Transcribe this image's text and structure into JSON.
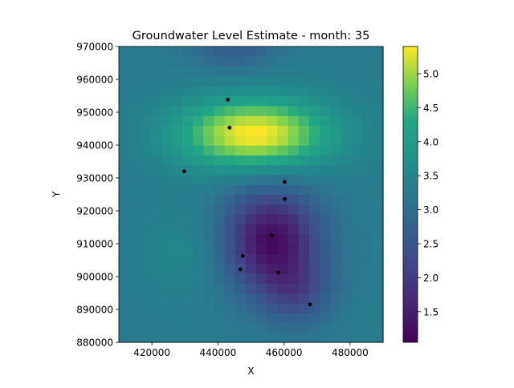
{
  "chart_data": {
    "type": "heatmap",
    "title": "Groundwater Level Estimate - month: 35",
    "xlabel": "X",
    "ylabel": "Y",
    "xlim": [
      410000,
      490000
    ],
    "ylim": [
      880000,
      970000
    ],
    "xticks": [
      420000,
      440000,
      460000,
      480000
    ],
    "yticks": [
      880000,
      890000,
      900000,
      910000,
      920000,
      930000,
      940000,
      950000,
      960000,
      970000
    ],
    "xtick_labels": [
      "420000",
      "440000",
      "460000",
      "480000"
    ],
    "ytick_labels": [
      "880000",
      "890000",
      "900000",
      "910000",
      "920000",
      "930000",
      "940000",
      "950000",
      "960000",
      "970000"
    ],
    "grid": false,
    "colormap": "viridis",
    "colorbar": {
      "range": [
        1.05,
        5.4
      ],
      "ticks": [
        1.5,
        2.0,
        2.5,
        3.0,
        3.5,
        4.0,
        4.5,
        5.0
      ],
      "tick_labels": [
        "1.5",
        "2.0",
        "2.5",
        "3.0",
        "3.5",
        "4.0",
        "4.5",
        "5.0"
      ]
    },
    "grid_cells": [
      25,
      30
    ],
    "field": {
      "base": 3.3,
      "components": [
        {
          "x": 451000,
          "y": 943500,
          "amp": 2.15,
          "sx": 16000,
          "sy": 7500
        },
        {
          "x": 456000,
          "y": 911000,
          "amp": -2.1,
          "sx": 10500,
          "sy": 11000
        },
        {
          "x": 464000,
          "y": 895000,
          "amp": -0.8,
          "sx": 7500,
          "sy": 7000
        },
        {
          "x": 445000,
          "y": 970000,
          "amp": -0.65,
          "sx": 9000,
          "sy": 5000
        },
        {
          "x": 432000,
          "y": 908000,
          "amp": 0.3,
          "sx": 10000,
          "sy": 10000
        }
      ]
    },
    "points": [
      {
        "x": 443000,
        "y": 953800
      },
      {
        "x": 443500,
        "y": 945300
      },
      {
        "x": 429800,
        "y": 932000
      },
      {
        "x": 460200,
        "y": 928800
      },
      {
        "x": 460200,
        "y": 923600
      },
      {
        "x": 456200,
        "y": 912500
      },
      {
        "x": 447500,
        "y": 906300
      },
      {
        "x": 446800,
        "y": 902200
      },
      {
        "x": 458300,
        "y": 901200
      },
      {
        "x": 467900,
        "y": 891500
      }
    ]
  }
}
